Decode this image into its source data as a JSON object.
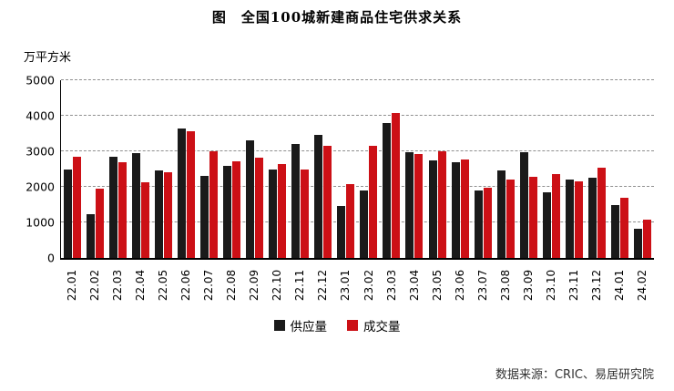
{
  "title": "图　全国100城新建商品住宅供求关系",
  "ylabel": "万平方米",
  "source": "数据来源：CRIC、易居研究院",
  "legend": {
    "items": [
      {
        "label": "供应量",
        "color": "#1a1a1a"
      },
      {
        "label": "成交量",
        "color": "#cc1016"
      }
    ]
  },
  "chart_data": {
    "type": "bar",
    "title": "图 全国100城新建商品住宅供求关系",
    "ylabel": "万平方米",
    "xlabel": "",
    "ylim": [
      0,
      5000
    ],
    "yticks": [
      0,
      1000,
      2000,
      3000,
      4000,
      5000
    ],
    "grid": true,
    "grid_style": "dashed",
    "legend_position": "bottom",
    "categories": [
      "22.01",
      "22.02",
      "22.03",
      "22.04",
      "22.05",
      "22.06",
      "22.07",
      "22.08",
      "22.09",
      "22.10",
      "22.11",
      "22.12",
      "23.01",
      "23.02",
      "23.03",
      "23.04",
      "23.05",
      "23.06",
      "23.07",
      "23.08",
      "23.09",
      "23.10",
      "23.11",
      "23.12",
      "24.01",
      "24.02"
    ],
    "series": [
      {
        "name": "供应量",
        "color": "#1a1a1a",
        "values": [
          2500,
          1230,
          2850,
          2950,
          2450,
          3650,
          2300,
          2600,
          3300,
          2480,
          3200,
          3450,
          1450,
          1900,
          3800,
          2980,
          2750,
          2700,
          1900,
          2450,
          2980,
          1850,
          2200,
          2250,
          1480,
          820
        ]
      },
      {
        "name": "成交量",
        "color": "#cc1016",
        "values": [
          2850,
          1950,
          2700,
          2130,
          2400,
          3570,
          3000,
          2730,
          2820,
          2650,
          2500,
          3150,
          2080,
          3150,
          4070,
          2930,
          3000,
          2780,
          1980,
          2200,
          2280,
          2350,
          2150,
          2550,
          1700,
          1070
        ]
      }
    ]
  }
}
